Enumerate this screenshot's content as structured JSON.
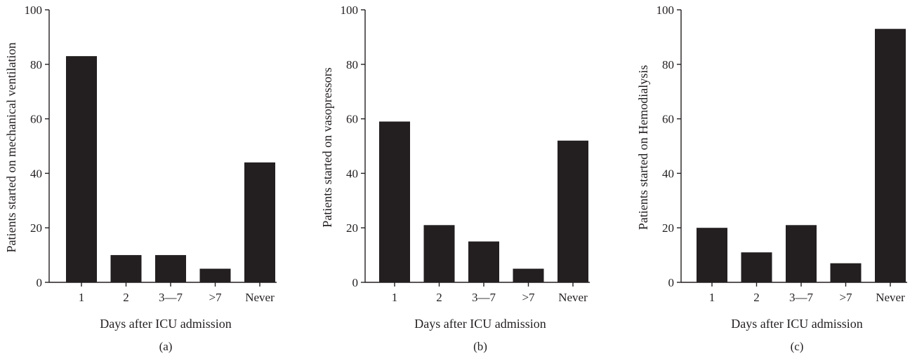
{
  "chart_data": [
    {
      "type": "bar",
      "panel_label": "(a)",
      "categories": [
        "1",
        "2",
        "3—7",
        ">7",
        "Never"
      ],
      "values": [
        83,
        10,
        10,
        5,
        44
      ],
      "xlabel": "Days after ICU admission",
      "ylabel": "Patients started on mechanical ventilation",
      "ylim": [
        0,
        100
      ],
      "yticks": [
        "0",
        "20",
        "40",
        "60",
        "80",
        "100"
      ],
      "grid": false,
      "bar_color": "#231f20"
    },
    {
      "type": "bar",
      "panel_label": "(b)",
      "categories": [
        "1",
        "2",
        "3—7",
        ">7",
        "Never"
      ],
      "values": [
        59,
        21,
        15,
        5,
        52
      ],
      "xlabel": "Days after ICU admission",
      "ylabel": "Patients started on vasopressors",
      "ylim": [
        0,
        100
      ],
      "yticks": [
        "0",
        "20",
        "40",
        "60",
        "80",
        "100"
      ],
      "grid": false,
      "bar_color": "#231f20"
    },
    {
      "type": "bar",
      "panel_label": "(c)",
      "categories": [
        "1",
        "2",
        "3—7",
        ">7",
        "Never"
      ],
      "values": [
        20,
        11,
        21,
        7,
        93
      ],
      "xlabel": "Days after ICU admission",
      "ylabel": "Patients started on Hemodialysis",
      "ylim": [
        0,
        100
      ],
      "yticks": [
        "0",
        "20",
        "40",
        "60",
        "80",
        "100"
      ],
      "grid": false,
      "bar_color": "#231f20"
    }
  ]
}
